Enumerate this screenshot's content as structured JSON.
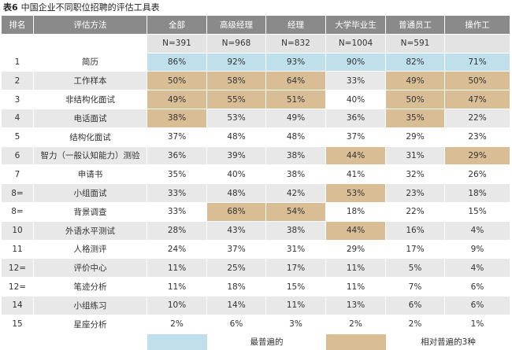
{
  "title": {
    "label": "表6",
    "text": "中国企业不同职位招聘的评估工具表"
  },
  "headers": [
    "排名",
    "评估方法",
    "全部",
    "高级经理",
    "经理",
    "大学毕业生",
    "普通员工",
    "操作工"
  ],
  "n_values": [
    "N=391",
    "N=968",
    "N=832",
    "N=1004",
    "N=591",
    ""
  ],
  "rows": [
    {
      "rank": "1",
      "method": "简历",
      "values": [
        "86%",
        "92%",
        "93%",
        "90%",
        "82%",
        "71%"
      ],
      "hl": [
        "blue",
        "blue",
        "blue",
        "blue",
        "blue",
        "blue"
      ]
    },
    {
      "rank": "2",
      "method": "工作样本",
      "values": [
        "50%",
        "58%",
        "64%",
        "33%",
        "49%",
        "50%"
      ],
      "hl": [
        "tan",
        "tan",
        "tan",
        "",
        "tan",
        "tan"
      ]
    },
    {
      "rank": "3",
      "method": "非结构化面试",
      "values": [
        "49%",
        "55%",
        "51%",
        "40%",
        "50%",
        "47%"
      ],
      "hl": [
        "tan",
        "tan",
        "tan",
        "",
        "tan",
        "tan"
      ]
    },
    {
      "rank": "4",
      "method": "电话面试",
      "values": [
        "38%",
        "53%",
        "49%",
        "36%",
        "35%",
        "22%"
      ],
      "hl": [
        "tan",
        "",
        "",
        "",
        "tan",
        ""
      ]
    },
    {
      "rank": "5",
      "method": "结构化面试",
      "values": [
        "37%",
        "48%",
        "48%",
        "37%",
        "29%",
        "23%"
      ],
      "hl": [
        "",
        "",
        "",
        "",
        "",
        ""
      ]
    },
    {
      "rank": "6",
      "method": "智力（一般认知能力）测验",
      "values": [
        "36%",
        "39%",
        "38%",
        "44%",
        "31%",
        "29%"
      ],
      "hl": [
        "",
        "",
        "",
        "tan",
        "",
        "tan"
      ]
    },
    {
      "rank": "7",
      "method": "申请书",
      "values": [
        "35%",
        "40%",
        "38%",
        "41%",
        "32%",
        "26%"
      ],
      "hl": [
        "",
        "",
        "",
        "",
        "",
        ""
      ]
    },
    {
      "rank": "8=",
      "method": "小组面试",
      "values": [
        "33%",
        "48%",
        "42%",
        "53%",
        "23%",
        "18%"
      ],
      "hl": [
        "",
        "",
        "",
        "tan",
        "",
        ""
      ]
    },
    {
      "rank": "8=",
      "method": "背景调查",
      "values": [
        "33%",
        "68%",
        "54%",
        "18%",
        "22%",
        "15%"
      ],
      "hl": [
        "",
        "tan",
        "tan",
        "",
        "",
        ""
      ]
    },
    {
      "rank": "10",
      "method": "外语水平测试",
      "values": [
        "28%",
        "43%",
        "38%",
        "44%",
        "16%",
        "4%"
      ],
      "hl": [
        "",
        "",
        "",
        "tan",
        "",
        ""
      ]
    },
    {
      "rank": "11",
      "method": "人格测评",
      "values": [
        "24%",
        "37%",
        "31%",
        "29%",
        "17%",
        "9%"
      ],
      "hl": [
        "",
        "",
        "",
        "",
        "",
        ""
      ]
    },
    {
      "rank": "12=",
      "method": "评价中心",
      "values": [
        "11%",
        "25%",
        "17%",
        "11%",
        "5%",
        "4%"
      ],
      "hl": [
        "",
        "",
        "",
        "",
        "",
        ""
      ]
    },
    {
      "rank": "12=",
      "method": "笔迹分析",
      "values": [
        "11%",
        "18%",
        "15%",
        "11%",
        "7%",
        "6%"
      ],
      "hl": [
        "",
        "",
        "",
        "",
        "",
        ""
      ]
    },
    {
      "rank": "14",
      "method": "小组练习",
      "values": [
        "10%",
        "14%",
        "11%",
        "13%",
        "6%",
        "6%"
      ],
      "hl": [
        "",
        "",
        "",
        "",
        "",
        ""
      ]
    },
    {
      "rank": "15",
      "method": "星座分析",
      "values": [
        "2%",
        "6%",
        "3%",
        "2%",
        "2%",
        "1%"
      ],
      "hl": [
        "",
        "",
        "",
        "",
        "",
        ""
      ]
    }
  ],
  "legend": {
    "blue_label": "最普遍的",
    "tan_label": "相对普遍的3种",
    "blue_color": "#bfe0ea",
    "tan_color": "#d9be95"
  }
}
